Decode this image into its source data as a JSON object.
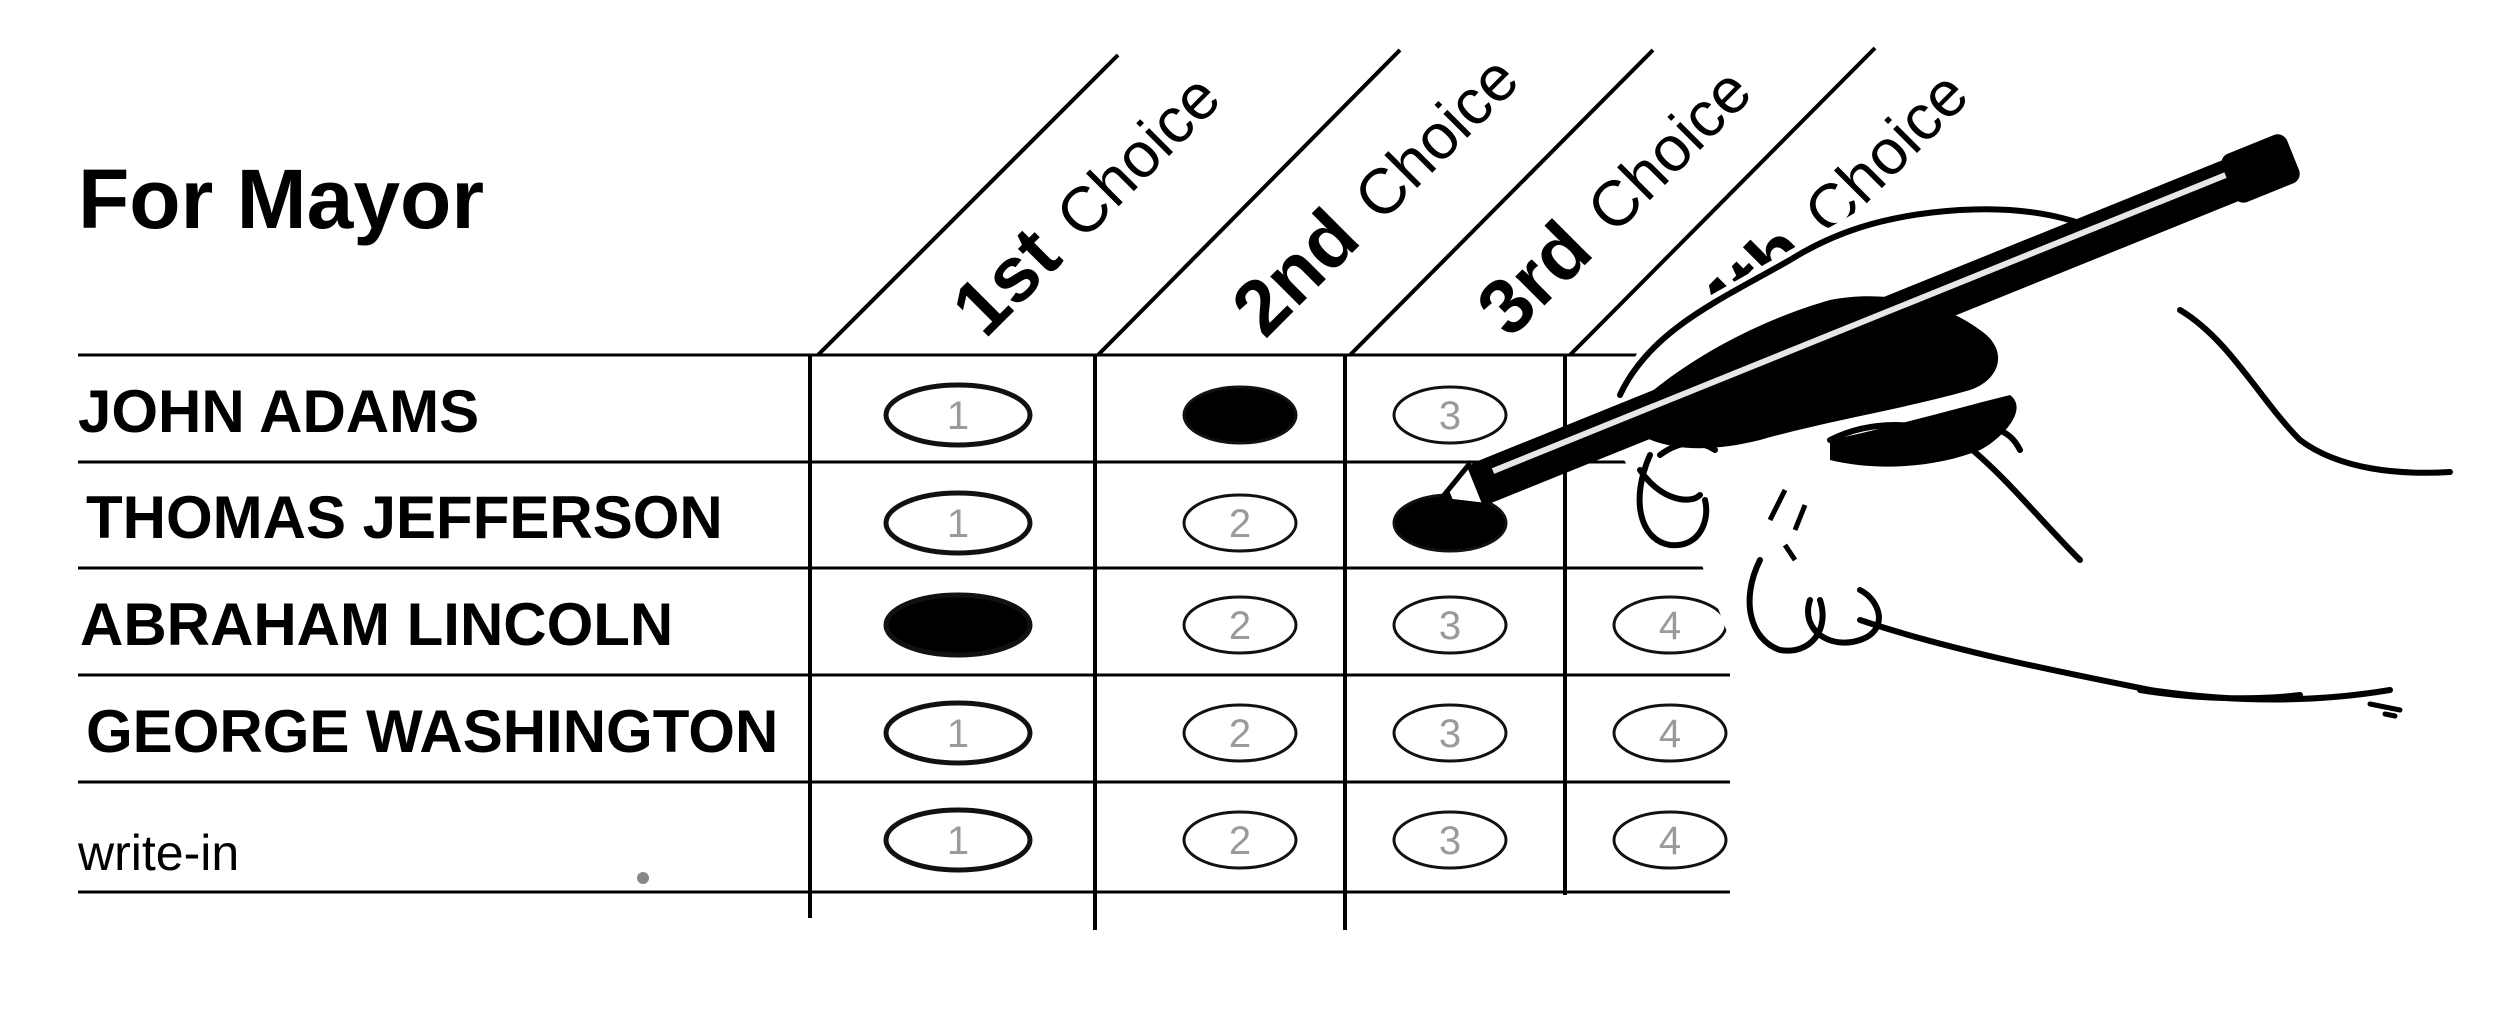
{
  "ballot": {
    "title": "For Mayor",
    "choice_headers": [
      {
        "ordinal": "1st",
        "label": "Choice"
      },
      {
        "ordinal": "2nd",
        "label": "Choice"
      },
      {
        "ordinal": "3rd",
        "label": "Choice"
      },
      {
        "ordinal": "4th",
        "label": "Choice"
      }
    ],
    "candidates": [
      {
        "name": "JOHN ADAMS",
        "marked": [
          false,
          true,
          false,
          false
        ]
      },
      {
        "name": "THOMAS JEFFERSON",
        "marked": [
          false,
          false,
          true,
          false
        ]
      },
      {
        "name": "ABRAHAM LINCOLN",
        "marked": [
          true,
          false,
          false,
          false
        ]
      },
      {
        "name": "GEORGE WASHINGTON",
        "marked": [
          false,
          false,
          false,
          false
        ]
      },
      {
        "name": "write-in",
        "marked": [
          false,
          false,
          false,
          false
        ]
      }
    ],
    "bubble_numbers": [
      "1",
      "2",
      "3",
      "4"
    ]
  },
  "colors": {
    "ink": "#000000",
    "bubble_outline": "#111111",
    "bubble_number": "#9a9a9a",
    "paper": "#ffffff"
  },
  "illustration": {
    "icon": "hand-holding-pencil-icon"
  }
}
